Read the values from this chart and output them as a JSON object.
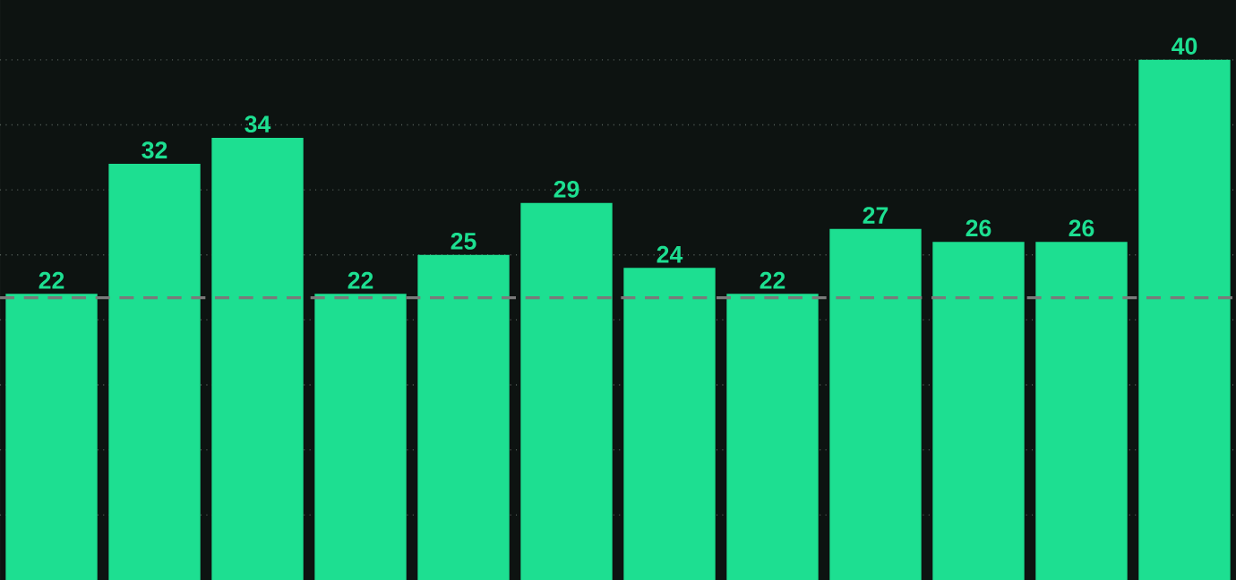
{
  "chart_data": {
    "type": "bar",
    "categories": [
      null,
      null,
      null,
      null,
      null,
      null,
      null,
      null,
      null,
      null,
      null,
      null
    ],
    "values": [
      22,
      32,
      34,
      22,
      25,
      29,
      24,
      22,
      27,
      26,
      26,
      40
    ],
    "color": "#1ddf91",
    "data_labels": true,
    "ylim": [
      0,
      44.6
    ],
    "yticks": [
      {
        "value": 5,
        "label": null
      },
      {
        "value": 10,
        "label": null
      },
      {
        "value": 15,
        "label": null
      },
      {
        "value": 20,
        "label": null
      },
      {
        "value": 25,
        "label": null
      },
      {
        "value": 30,
        "label": null
      },
      {
        "value": 35,
        "label": null
      },
      {
        "value": 40,
        "label": null
      }
    ],
    "grid": "y",
    "ref_lines": [
      {
        "axis": "y",
        "value": 21.7,
        "color": "#7a7a7a",
        "line_style": "dashed"
      }
    ]
  }
}
